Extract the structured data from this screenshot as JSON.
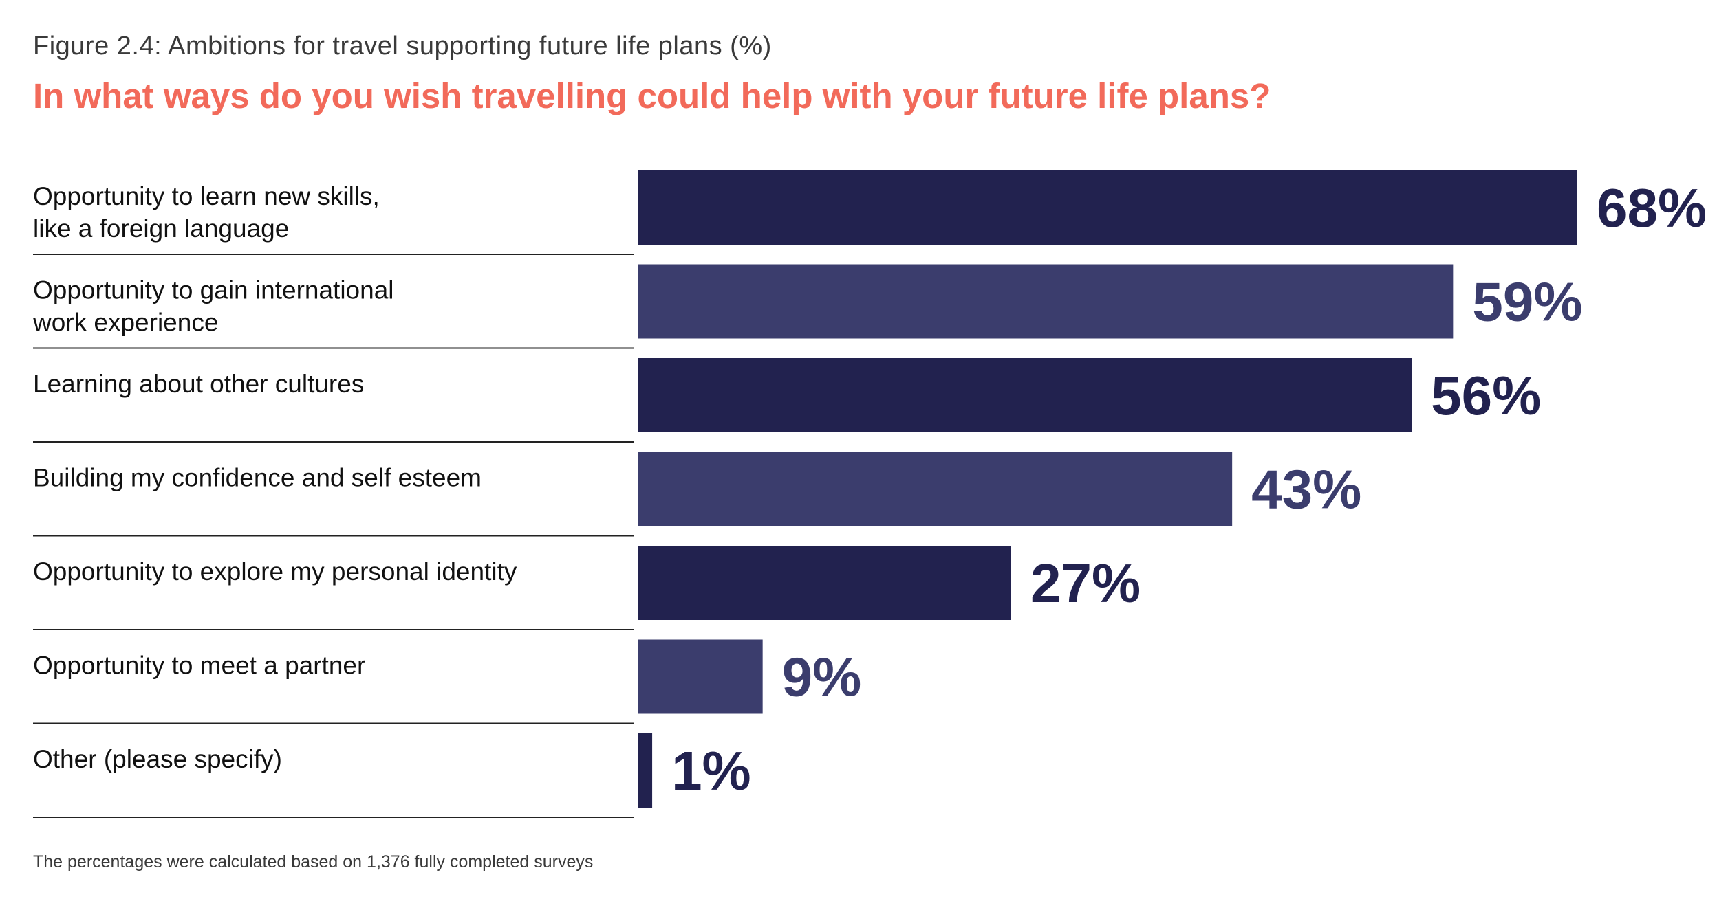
{
  "figure_label": "Figure 2.4: Ambitions for travel supporting future life plans (%)",
  "footnote": "The percentages were calculated based on 1,376 fully completed surveys",
  "colors": {
    "dark_bar": "#22224f",
    "light_bar": "#3b3d6d",
    "title": "#f26a5a",
    "label_text": "#111111",
    "rule": "#222222"
  },
  "chart_data": {
    "type": "bar",
    "orientation": "horizontal",
    "title": "In what ways do you wish travelling could help with your future life plans?",
    "xlabel": "",
    "ylabel": "",
    "unit": "%",
    "xlim": [
      0,
      68
    ],
    "grid": false,
    "categories": [
      [
        "Opportunity to learn new skills,",
        "like a foreign language"
      ],
      [
        "Opportunity to gain international",
        "work experience"
      ],
      [
        "Learning about other cultures"
      ],
      [
        "Building my confidence and self esteem"
      ],
      [
        "Opportunity to explore my personal identity"
      ],
      [
        "Opportunity to meet a partner"
      ],
      [
        "Other (please specify)"
      ]
    ],
    "values": [
      68,
      59,
      56,
      43,
      27,
      9,
      1
    ],
    "value_labels": [
      "68%",
      "59%",
      "56%",
      "43%",
      "27%",
      "9%",
      "1%"
    ],
    "bar_colors": [
      "#22224f",
      "#3b3d6d",
      "#22224f",
      "#3b3d6d",
      "#22224f",
      "#3b3d6d",
      "#22224f"
    ]
  }
}
